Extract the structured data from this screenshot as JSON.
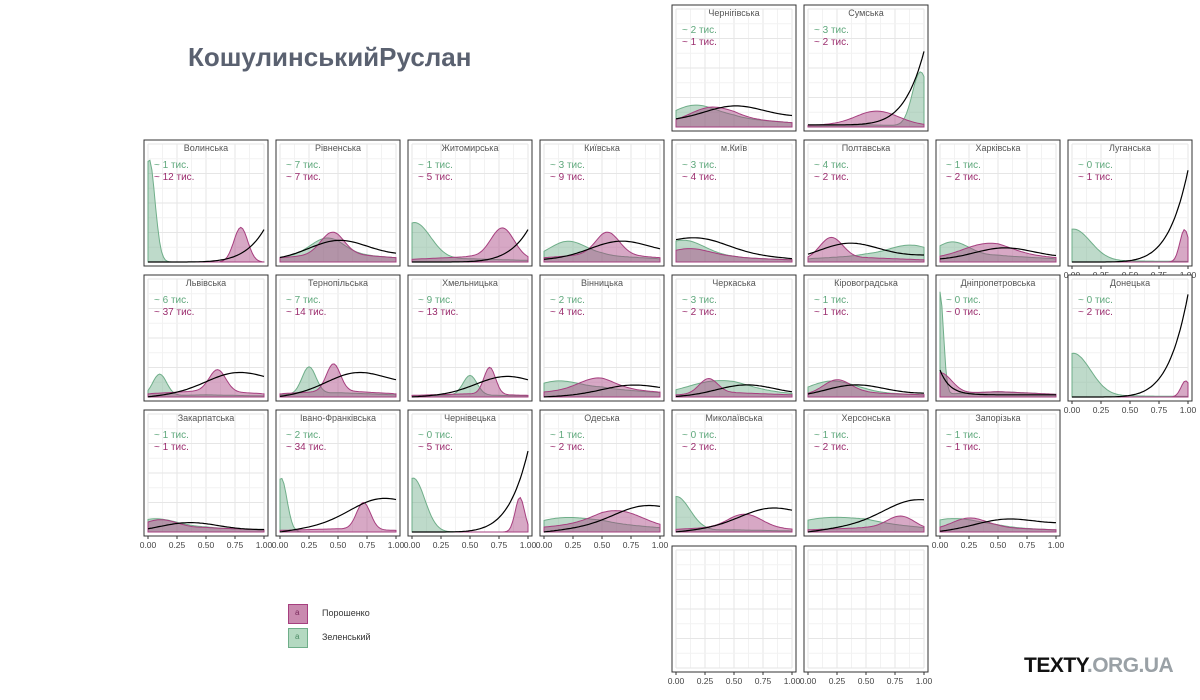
{
  "page": {
    "title": "КошулинськийРуслан",
    "brand_text": "TEXTY",
    "brand_domain": ".ORG.UA"
  },
  "colors": {
    "poroshenko": "#a63f7f",
    "zelensky": "#6fae89",
    "line": "#000000",
    "label_z": "#5fa87c",
    "label_p": "#9b2d6e"
  },
  "chart_data": {
    "type": "area",
    "title": "КошулинськийРуслан",
    "xlabel": "",
    "ylabel": "",
    "xlim": [
      0,
      1
    ],
    "x_ticks": [
      "0.00",
      "0.25",
      "0.50",
      "0.75",
      "1.00"
    ],
    "grid": true,
    "legend": {
      "placement": "bottom-left",
      "items": [
        "Порошенко",
        "Зеленський"
      ]
    },
    "value_unit": "тис.",
    "series_names": [
      "Порошенко",
      "Зеленський"
    ],
    "panels": [
      {
        "name": "Чернігівська",
        "row": 0,
        "col": 4,
        "z_label": "~ 2  тис.",
        "p_label": "~ 1  тис.",
        "z": {
          "peak": 0.15,
          "width": 0.2,
          "height": 0.15,
          "tail": 0.08
        },
        "p": {
          "peak": 0.3,
          "width": 0.18,
          "height": 0.12,
          "tail": 0.08
        },
        "line": {
          "start": 0.06,
          "end": 0.09,
          "peak": 0.5,
          "height": 0.12
        },
        "x_axis": false
      },
      {
        "name": "Сумська",
        "row": 0,
        "col": 5,
        "z_label": "~ 3  тис.",
        "p_label": "~ 2  тис.",
        "z": {
          "peak": 0.97,
          "width": 0.07,
          "height": 0.5,
          "tail": 0.02
        },
        "p": {
          "peak": 0.6,
          "width": 0.18,
          "height": 0.12,
          "tail": 0.03
        },
        "line": {
          "start": 0.02,
          "end": 0.7,
          "peak": 0.95,
          "height": 0.7,
          "rising": true
        },
        "x_axis": false
      },
      {
        "name": "Волинська",
        "row": 1,
        "col": 0,
        "z_label": "~ 1  тис.",
        "p_label": "~ 12  тис.",
        "z": {
          "peak": 0.01,
          "width": 0.05,
          "height": 0.95,
          "tail": 0.0
        },
        "p": {
          "peak": 0.8,
          "width": 0.06,
          "height": 0.32,
          "tail": 0.0
        },
        "line": {
          "start": 0.0,
          "end": 0.3,
          "peak": 0.95,
          "height": 0.3,
          "rising": true
        },
        "x_axis": false
      },
      {
        "name": "Рівненська",
        "row": 1,
        "col": 1,
        "z_label": "~ 7  тис.",
        "p_label": "~ 7  тис.",
        "z": {
          "peak": 0.4,
          "width": 0.14,
          "height": 0.15,
          "tail": 0.08
        },
        "p": {
          "peak": 0.45,
          "width": 0.1,
          "height": 0.2,
          "tail": 0.08
        },
        "line": {
          "start": 0.02,
          "end": 0.06,
          "peak": 0.5,
          "height": 0.16
        },
        "x_axis": false
      },
      {
        "name": "Житомирська",
        "row": 1,
        "col": 2,
        "z_label": "~ 1  тис.",
        "p_label": "~ 5  тис.",
        "z": {
          "peak": 0.02,
          "width": 0.14,
          "height": 0.35,
          "tail": 0.03
        },
        "p": {
          "peak": 0.78,
          "width": 0.1,
          "height": 0.28,
          "tail": 0.05
        },
        "line": {
          "start": 0.0,
          "end": 0.3,
          "peak": 0.9,
          "height": 0.3,
          "rising": true
        },
        "x_axis": false
      },
      {
        "name": "Київська",
        "row": 1,
        "col": 3,
        "z_label": "~ 3  тис.",
        "p_label": "~ 9  тис.",
        "z": {
          "peak": 0.2,
          "width": 0.16,
          "height": 0.15,
          "tail": 0.06
        },
        "p": {
          "peak": 0.55,
          "width": 0.1,
          "height": 0.2,
          "tail": 0.08
        },
        "line": {
          "start": 0.02,
          "end": 0.07,
          "peak": 0.65,
          "height": 0.14
        },
        "x_axis": false
      },
      {
        "name": "м.Київ",
        "row": 1,
        "col": 4,
        "z_label": "~ 3  тис.",
        "p_label": "~ 4  тис.",
        "z": {
          "peak": 0.05,
          "width": 0.2,
          "height": 0.18,
          "tail": 0.04
        },
        "p": {
          "peak": 0.1,
          "width": 0.2,
          "height": 0.1,
          "tail": 0.04
        },
        "line": {
          "start": 0.12,
          "end": 0.03,
          "peak": 0.2,
          "height": 0.12
        },
        "x_axis": false
      },
      {
        "name": "Полтавська",
        "row": 1,
        "col": 5,
        "z_label": "~ 4  тис.",
        "p_label": "~ 2  тис.",
        "z": {
          "peak": 0.9,
          "width": 0.2,
          "height": 0.12,
          "tail": 0.06
        },
        "p": {
          "peak": 0.2,
          "width": 0.1,
          "height": 0.2,
          "tail": 0.04
        },
        "line": {
          "start": 0.02,
          "end": 0.06,
          "peak": 0.35,
          "height": 0.14
        },
        "x_axis": false
      },
      {
        "name": "Харківська",
        "row": 1,
        "col": 6,
        "z_label": "~ 1  тис.",
        "p_label": "~ 2  тис.",
        "z": {
          "peak": 0.1,
          "width": 0.15,
          "height": 0.15,
          "tail": 0.06
        },
        "p": {
          "peak": 0.4,
          "width": 0.2,
          "height": 0.1,
          "tail": 0.08
        },
        "line": {
          "start": 0.02,
          "end": 0.04,
          "peak": 0.55,
          "height": 0.1
        },
        "x_axis": false
      },
      {
        "name": "Луганська",
        "row": 1,
        "col": 7,
        "z_label": "~ 0  тис.",
        "p_label": "~ 1  тис.",
        "z": {
          "peak": 0.01,
          "width": 0.15,
          "height": 0.3,
          "tail": 0.01
        },
        "p": {
          "peak": 0.97,
          "width": 0.04,
          "height": 0.3,
          "tail": 0.0
        },
        "line": {
          "start": 0.0,
          "end": 0.85,
          "peak": 0.97,
          "height": 0.85,
          "rising": true
        },
        "x_axis": true
      },
      {
        "name": "Львівська",
        "row": 2,
        "col": 0,
        "z_label": "~ 6  тис.",
        "p_label": "~ 37  тис.",
        "z": {
          "peak": 0.1,
          "width": 0.06,
          "height": 0.2,
          "tail": 0.02
        },
        "p": {
          "peak": 0.6,
          "width": 0.07,
          "height": 0.2,
          "tail": 0.06
        },
        "line": {
          "start": 0.0,
          "end": 0.1,
          "peak": 0.75,
          "height": 0.15
        },
        "x_axis": false
      },
      {
        "name": "Тернопільська",
        "row": 2,
        "col": 1,
        "z_label": "~ 7  тис.",
        "p_label": "~ 14  тис.",
        "z": {
          "peak": 0.25,
          "width": 0.06,
          "height": 0.25,
          "tail": 0.04
        },
        "p": {
          "peak": 0.46,
          "width": 0.06,
          "height": 0.25,
          "tail": 0.06
        },
        "line": {
          "start": 0.0,
          "end": 0.1,
          "peak": 0.65,
          "height": 0.16
        },
        "x_axis": false
      },
      {
        "name": "Хмельницька",
        "row": 2,
        "col": 2,
        "z_label": "~ 9  тис.",
        "p_label": "~ 13  тис.",
        "z": {
          "peak": 0.5,
          "width": 0.06,
          "height": 0.18,
          "tail": 0.02
        },
        "p": {
          "peak": 0.67,
          "width": 0.05,
          "height": 0.25,
          "tail": 0.03
        },
        "line": {
          "start": 0.0,
          "end": 0.05,
          "peak": 0.8,
          "height": 0.15
        },
        "x_axis": false
      },
      {
        "name": "Вінницька",
        "row": 2,
        "col": 3,
        "z_label": "~ 2  тис.",
        "p_label": "~ 4  тис.",
        "z": {
          "peak": 0.1,
          "width": 0.2,
          "height": 0.1,
          "tail": 0.08
        },
        "p": {
          "peak": 0.45,
          "width": 0.15,
          "height": 0.09,
          "tail": 0.09
        },
        "line": {
          "start": 0.0,
          "end": 0.04,
          "peak": 0.75,
          "height": 0.08
        },
        "x_axis": false
      },
      {
        "name": "Черкаська",
        "row": 2,
        "col": 4,
        "z_label": "~ 3  тис.",
        "p_label": "~ 2  тис.",
        "z": {
          "peak": 0.35,
          "width": 0.25,
          "height": 0.1,
          "tail": 0.06
        },
        "p": {
          "peak": 0.28,
          "width": 0.08,
          "height": 0.14,
          "tail": 0.04
        },
        "line": {
          "start": 0.0,
          "end": 0.02,
          "peak": 0.6,
          "height": 0.1
        },
        "x_axis": false
      },
      {
        "name": "Кіровоградська",
        "row": 2,
        "col": 5,
        "z_label": "~ 1  тис.",
        "p_label": "~ 1  тис.",
        "z": {
          "peak": 0.2,
          "width": 0.2,
          "height": 0.12,
          "tail": 0.04
        },
        "p": {
          "peak": 0.25,
          "width": 0.12,
          "height": 0.13,
          "tail": 0.04
        },
        "line": {
          "start": 0.0,
          "end": 0.03,
          "peak": 0.4,
          "height": 0.1
        },
        "x_axis": false
      },
      {
        "name": "Дніпропетровська",
        "row": 2,
        "col": 6,
        "z_label": "~ 0  тис.",
        "p_label": "~ 0  тис.",
        "z": {
          "peak": 0.0,
          "width": 0.03,
          "height": 0.95,
          "tail": 0.05
        },
        "p": {
          "peak": 0.0,
          "width": 0.1,
          "height": 0.2,
          "tail": 0.05
        },
        "line": {
          "start": 0.25,
          "end": 0.02,
          "peak": 0.0,
          "height": 0.25,
          "falling": true
        },
        "x_axis": false
      },
      {
        "name": "Донецька",
        "row": 2,
        "col": 7,
        "z_label": "~ 0  тис.",
        "p_label": "~ 2  тис.",
        "z": {
          "peak": 0.01,
          "width": 0.15,
          "height": 0.4,
          "tail": 0.01
        },
        "p": {
          "peak": 0.98,
          "width": 0.04,
          "height": 0.15,
          "tail": 0.0
        },
        "line": {
          "start": 0.0,
          "end": 0.95,
          "peak": 0.98,
          "height": 0.95,
          "rising": true
        },
        "x_axis": true
      },
      {
        "name": "Закарпатська",
        "row": 3,
        "col": 0,
        "z_label": "~ 1  тис.",
        "p_label": "~ 1  тис.",
        "z": {
          "peak": 0.05,
          "width": 0.2,
          "height": 0.1,
          "tail": 0.04
        },
        "p": {
          "peak": 0.1,
          "width": 0.15,
          "height": 0.09,
          "tail": 0.04
        },
        "line": {
          "start": 0.0,
          "end": 0.02,
          "peak": 0.35,
          "height": 0.08
        },
        "x_axis": true
      },
      {
        "name": "Івано-Франківська",
        "row": 3,
        "col": 1,
        "z_label": "~ 2  тис.",
        "p_label": "~ 34  тис.",
        "z": {
          "peak": 0.01,
          "width": 0.05,
          "height": 0.5,
          "tail": 0.0
        },
        "p": {
          "peak": 0.72,
          "width": 0.06,
          "height": 0.25,
          "tail": 0.03
        },
        "line": {
          "start": 0.0,
          "end": 0.15,
          "peak": 0.85,
          "height": 0.18
        },
        "x_axis": true
      },
      {
        "name": "Чернівецька",
        "row": 3,
        "col": 2,
        "z_label": "~ 0  тис.",
        "p_label": "~ 5  тис.",
        "z": {
          "peak": 0.01,
          "width": 0.1,
          "height": 0.5,
          "tail": 0.0
        },
        "p": {
          "peak": 0.93,
          "width": 0.04,
          "height": 0.32,
          "tail": 0.0
        },
        "line": {
          "start": 0.0,
          "end": 0.75,
          "peak": 0.96,
          "height": 0.75,
          "rising": true
        },
        "x_axis": true
      },
      {
        "name": "Одеська",
        "row": 3,
        "col": 3,
        "z_label": "~ 1  тис.",
        "p_label": "~ 2  тис.",
        "z": {
          "peak": 0.15,
          "width": 0.25,
          "height": 0.08,
          "tail": 0.08
        },
        "p": {
          "peak": 0.65,
          "width": 0.2,
          "height": 0.12,
          "tail": 0.09
        },
        "line": {
          "start": 0.0,
          "end": 0.12,
          "peak": 0.85,
          "height": 0.14
        },
        "x_axis": true
      },
      {
        "name": "Миколаївська",
        "row": 3,
        "col": 4,
        "z_label": "~ 0  тис.",
        "p_label": "~ 2  тис.",
        "z": {
          "peak": 0.0,
          "width": 0.12,
          "height": 0.32,
          "tail": 0.02
        },
        "p": {
          "peak": 0.6,
          "width": 0.14,
          "height": 0.12,
          "tail": 0.05
        },
        "line": {
          "start": 0.0,
          "end": 0.1,
          "peak": 0.8,
          "height": 0.14
        },
        "x_axis": false
      },
      {
        "name": "Херсонська",
        "row": 3,
        "col": 5,
        "z_label": "~ 1  тис.",
        "p_label": "~ 2  тис.",
        "z": {
          "peak": 0.15,
          "width": 0.3,
          "height": 0.08,
          "tail": 0.08
        },
        "p": {
          "peak": 0.8,
          "width": 0.12,
          "height": 0.12,
          "tail": 0.04
        },
        "line": {
          "start": 0.0,
          "end": 0.15,
          "peak": 0.9,
          "height": 0.16
        },
        "x_axis": false
      },
      {
        "name": "Запорізька",
        "row": 3,
        "col": 6,
        "z_label": "~ 1  тис.",
        "p_label": "~ 1  тис.",
        "z": {
          "peak": 0.1,
          "width": 0.25,
          "height": 0.1,
          "tail": 0.04
        },
        "p": {
          "peak": 0.25,
          "width": 0.15,
          "height": 0.1,
          "tail": 0.04
        },
        "line": {
          "start": 0.0,
          "end": 0.07,
          "peak": 0.55,
          "height": 0.08
        },
        "x_axis": true
      },
      {
        "name": "",
        "row": 4,
        "col": 4,
        "empty": true,
        "x_axis": true
      },
      {
        "name": "",
        "row": 4,
        "col": 5,
        "empty": true,
        "x_axis": true
      }
    ]
  },
  "legend": {
    "items": [
      {
        "label": "Порошенко",
        "glyph": "a"
      },
      {
        "label": "Зеленський",
        "glyph": "a"
      }
    ]
  }
}
